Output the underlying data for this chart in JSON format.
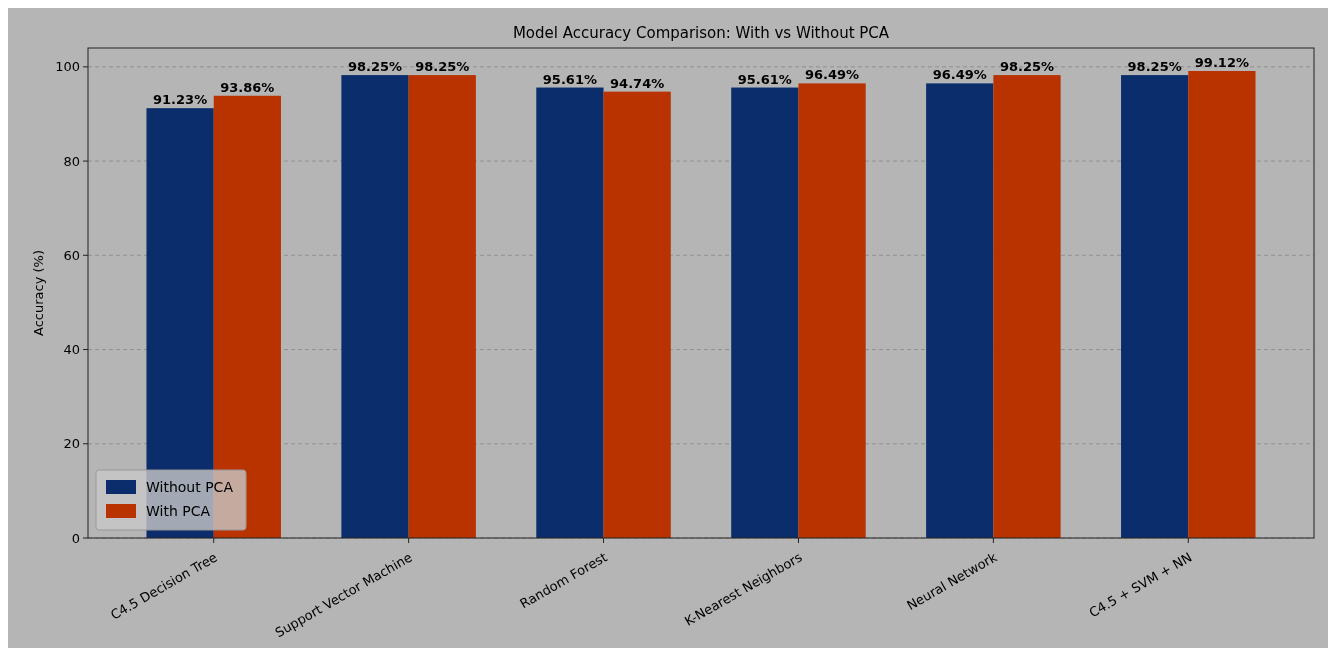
{
  "chart_data": {
    "type": "bar",
    "title": "Model Accuracy Comparison: With vs Without PCA",
    "ylabel": "Accuracy (%)",
    "categories": [
      "C4.5 Decision Tree",
      "Support Vector Machine",
      "Random Forest",
      "K-Nearest Neighbors",
      "Neural Network",
      "C4.5 + SVM + NN"
    ],
    "series": [
      {
        "name": "Without PCA",
        "color": "#0b2d6b",
        "values": [
          91.23,
          98.25,
          95.61,
          95.61,
          96.49,
          98.25
        ],
        "value_labels": [
          "91.23%",
          "98.25%",
          "95.61%",
          "95.61%",
          "96.49%",
          "98.25%"
        ]
      },
      {
        "name": "With PCA",
        "color": "#b83300",
        "values": [
          93.86,
          98.25,
          94.74,
          96.49,
          98.25,
          99.12
        ],
        "value_labels": [
          "93.86%",
          "98.25%",
          "94.74%",
          "96.49%",
          "98.25%",
          "99.12%"
        ]
      }
    ],
    "ylim": [
      0,
      104
    ],
    "yticks": [
      0,
      20,
      40,
      60,
      80,
      100
    ],
    "grid": "y",
    "legend": "bottom left"
  }
}
